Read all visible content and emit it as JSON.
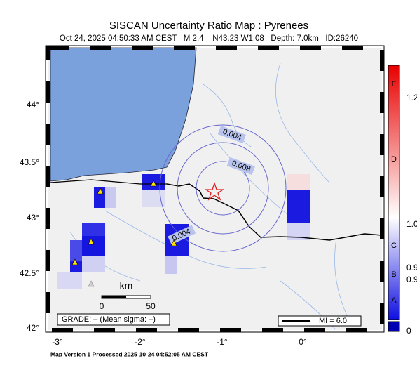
{
  "header": {
    "title": "SISCAN Uncertainty Ratio Map : Pyrenees",
    "subtitle": "Oct 24, 2025 04:50:33 AM CEST   M 2.4    N43.23 W1.08   Depth: 7.0km   ID:26240"
  },
  "map": {
    "lat_labels": [
      "44°",
      "43.5°",
      "43°",
      "42.5°",
      "42°"
    ],
    "lon_labels": [
      "-3°",
      "-2°",
      "-1°",
      "0°"
    ],
    "contour_labels": [
      "0.004",
      "0.008",
      "0.004"
    ],
    "scale_bar": {
      "unit": "km",
      "start": "0",
      "end": "50"
    },
    "grade": "GRADE: – (Mean sigma: –)",
    "legend": "MI = 6.0"
  },
  "colorbar": {
    "letters": [
      "F",
      "D",
      "C",
      "B",
      "A"
    ],
    "numbers": [
      "1.2",
      "1.0",
      "0.9",
      "0.9",
      "0"
    ]
  },
  "footer": "Map Version 1 Processed 2025-10-24 04:52:05 AM CEST"
}
